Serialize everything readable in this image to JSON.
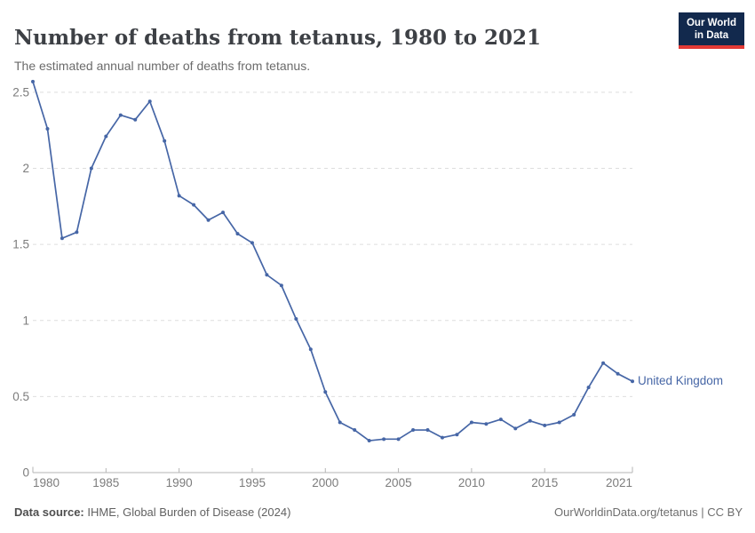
{
  "header": {
    "title": "Number of deaths from tetanus, 1980 to 2021",
    "subtitle": "The estimated annual number of deaths from tetanus."
  },
  "logo": {
    "line1": "Our World",
    "line2": "in Data",
    "bg_color": "#12294d",
    "accent_color": "#e23935"
  },
  "chart_data": {
    "type": "line",
    "title": "Number of deaths from tetanus, 1980 to 2021",
    "x": [
      1980,
      1981,
      1982,
      1983,
      1984,
      1985,
      1986,
      1987,
      1988,
      1989,
      1990,
      1991,
      1992,
      1993,
      1994,
      1995,
      1996,
      1997,
      1998,
      1999,
      2000,
      2001,
      2002,
      2003,
      2004,
      2005,
      2006,
      2007,
      2008,
      2009,
      2010,
      2011,
      2012,
      2013,
      2014,
      2015,
      2016,
      2017,
      2018,
      2019,
      2020,
      2021
    ],
    "series": [
      {
        "name": "United Kingdom",
        "color": "#4666a6",
        "values": [
          2.57,
          2.26,
          1.54,
          1.58,
          2.0,
          2.21,
          2.35,
          2.32,
          2.44,
          2.18,
          1.82,
          1.76,
          1.66,
          1.71,
          1.57,
          1.51,
          1.3,
          1.23,
          1.01,
          0.81,
          0.53,
          0.33,
          0.28,
          0.21,
          0.22,
          0.22,
          0.28,
          0.28,
          0.23,
          0.25,
          0.33,
          0.32,
          0.35,
          0.29,
          0.34,
          0.31,
          0.33,
          0.38,
          0.56,
          0.72,
          0.65,
          0.6
        ]
      }
    ],
    "xlabel": "",
    "ylabel": "",
    "xlim": [
      1980,
      2021
    ],
    "ylim": [
      0,
      2.6
    ],
    "xticks": [
      1980,
      1985,
      1990,
      1995,
      2000,
      2005,
      2010,
      2015,
      2021
    ],
    "yticks": [
      0,
      0.5,
      1,
      1.5,
      2,
      2.5
    ],
    "grid": "horizontal-dashed",
    "legend_position": "end-of-line",
    "gridline_color": "#dedede",
    "axis_color": "#b5b5b5",
    "tick_label_color": "#7c7c7c"
  },
  "footer": {
    "source_label": "Data source:",
    "source_text": " IHME, Global Burden of Disease (2024)",
    "credit": "OurWorldinData.org/tetanus | CC BY"
  }
}
